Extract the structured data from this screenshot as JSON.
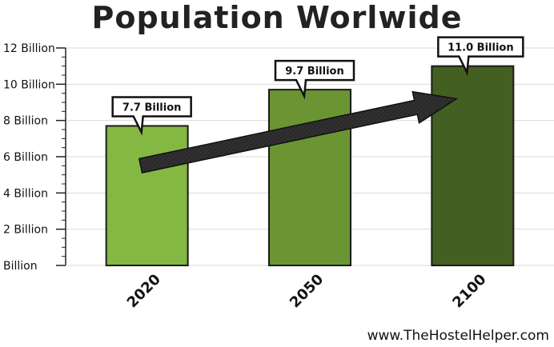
{
  "chart_data": {
    "type": "bar",
    "title": "Population Worlwide",
    "categories": [
      "2020",
      "2050",
      "2100"
    ],
    "values": [
      7.7,
      9.7,
      11.0
    ],
    "value_labels": [
      "7.7 Billion",
      "9.7 Billion",
      "11.0 Billion"
    ],
    "y_tick_labels": [
      "Billion",
      "2 Billion",
      "4 Billion",
      "6 Billion",
      "8 Billion",
      "10 Billion",
      "12 Billion"
    ],
    "y_ticks": [
      0,
      2,
      4,
      6,
      8,
      10,
      12
    ],
    "ylim": [
      0,
      12
    ],
    "grid": true,
    "bar_colors": [
      "#84b842",
      "#6a9532",
      "#445f22"
    ],
    "trend_arrow": {
      "from": 5.5,
      "to": 9.2,
      "color": "#262626"
    }
  },
  "watermark": "www.TheHostelHelper.com"
}
